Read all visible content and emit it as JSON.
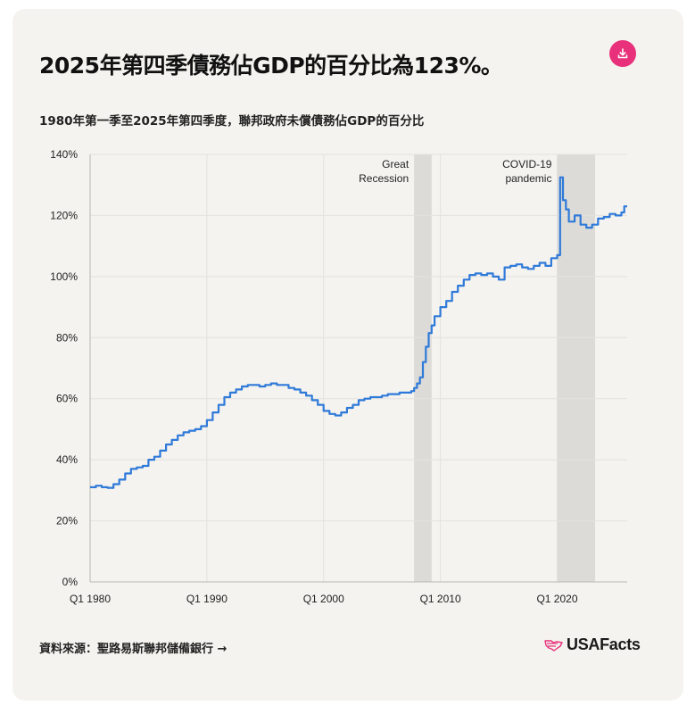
{
  "title": "2025年第四季債務佔GDP的百分比為123%。",
  "subtitle": "1980年第一季至2025年第四季度，聯邦政府未償債務佔GDP的百分比",
  "source_link": "資料來源：聖路易斯聯邦儲備銀行 →",
  "logo_text": "USAFacts",
  "download_icon": "download-icon",
  "colors": {
    "line": "#2f7ad9",
    "shade": "#dcdbd7",
    "accent": "#e8317a",
    "card": "#f4f3ef"
  },
  "chart_data": {
    "type": "line",
    "step": true,
    "title": "2025年第四季債務佔GDP的百分比為123%。",
    "ylim": [
      0,
      140
    ],
    "xlim": [
      1980.0,
      2026.0
    ],
    "y_ticks": [
      "0%",
      "20%",
      "40%",
      "60%",
      "80%",
      "100%",
      "120%",
      "140%"
    ],
    "y_tick_values": [
      0,
      20,
      40,
      60,
      80,
      100,
      120,
      140
    ],
    "x_ticks": [
      "Q1 1980",
      "Q1 1990",
      "Q1 2000",
      "Q1 2010",
      "Q1 2020"
    ],
    "x_tick_values": [
      1980,
      1990,
      2000,
      2010,
      2020
    ],
    "grid": true,
    "recessions": [
      {
        "label": "Great Recession",
        "lines": [
          "Great",
          "Recession"
        ],
        "start": 2007.75,
        "end": 2009.25
      },
      {
        "label": "COVID-19 pandemic",
        "lines": [
          "COVID-19",
          "pandemic"
        ],
        "start": 2020.0,
        "end": 2023.25
      }
    ],
    "series": [
      {
        "x": [
          1980.0,
          1980.5,
          1981.0,
          1981.5,
          1982.0,
          1982.5,
          1983.0,
          1983.5,
          1984.0,
          1984.5,
          1985.0,
          1985.5,
          1986.0,
          1986.5,
          1987.0,
          1987.5,
          1988.0,
          1988.5,
          1989.0,
          1989.5,
          1990.0,
          1990.5,
          1991.0,
          1991.5,
          1992.0,
          1992.5,
          1993.0,
          1993.5,
          1994.0,
          1994.5,
          1995.0,
          1995.5,
          1996.0,
          1996.5,
          1997.0,
          1997.5,
          1998.0,
          1998.5,
          1999.0,
          1999.5,
          2000.0,
          2000.5,
          2001.0,
          2001.5,
          2002.0,
          2002.5,
          2003.0,
          2003.5,
          2004.0,
          2004.5,
          2005.0,
          2005.5,
          2006.0,
          2006.5,
          2007.0,
          2007.5,
          2007.75,
          2008.0,
          2008.25,
          2008.5,
          2008.75,
          2009.0,
          2009.25,
          2009.5,
          2010.0,
          2010.5,
          2011.0,
          2011.5,
          2012.0,
          2012.5,
          2013.0,
          2013.5,
          2014.0,
          2014.5,
          2015.0,
          2015.5,
          2016.0,
          2016.5,
          2017.0,
          2017.5,
          2018.0,
          2018.5,
          2019.0,
          2019.5,
          2020.0,
          2020.25,
          2020.5,
          2020.75,
          2021.0,
          2021.5,
          2022.0,
          2022.5,
          2023.0,
          2023.5,
          2024.0,
          2024.5,
          2025.0,
          2025.5,
          2025.75
        ],
        "values": [
          31,
          31.5,
          31,
          30.8,
          32,
          33.5,
          35.5,
          37,
          37.5,
          38,
          40,
          41,
          43,
          45,
          46.5,
          48,
          49,
          49.5,
          50,
          51,
          53,
          55.5,
          58,
          60.5,
          62,
          63,
          64,
          64.5,
          64.5,
          64,
          64.5,
          65,
          64.5,
          64.5,
          63.5,
          63,
          62,
          61,
          59.5,
          58,
          56,
          55,
          54.5,
          55.5,
          57,
          58,
          59.5,
          60,
          60.5,
          60.5,
          61,
          61.5,
          61.5,
          62,
          62,
          62.5,
          63.5,
          65,
          67,
          72,
          77,
          81.5,
          84,
          87,
          90,
          92,
          95,
          97,
          99,
          100.5,
          101,
          100.5,
          101,
          100,
          99,
          103,
          103.5,
          104,
          103,
          102.5,
          103.5,
          104.5,
          103.5,
          106,
          107,
          132.5,
          125,
          122,
          118,
          120,
          117,
          116,
          117,
          119,
          119.5,
          120.5,
          120,
          121,
          123
        ],
        "name": ""
      }
    ]
  }
}
